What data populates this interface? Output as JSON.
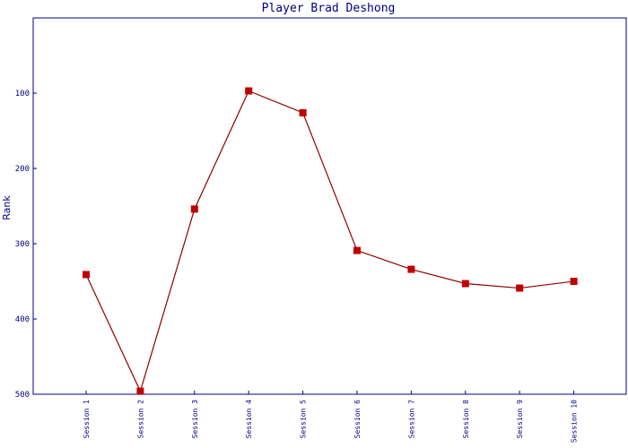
{
  "chart_data": {
    "type": "line",
    "title": "Player Brad Deshong",
    "xlabel": "",
    "ylabel": "Rank",
    "ylim": [
      0,
      500
    ],
    "y_inverted": true,
    "yticks": [
      100,
      200,
      300,
      400,
      500
    ],
    "categories": [
      "Session 1",
      "Session 2",
      "Session 3",
      "Session 4",
      "Session 5",
      "Session 6",
      "Session 7",
      "Session 8",
      "Session 9",
      "Session 10"
    ],
    "series": [
      {
        "values": [
          341,
          496,
          254,
          97,
          126,
          309,
          334,
          353,
          359,
          350
        ]
      }
    ],
    "grid": false,
    "legend": "none"
  },
  "colors": {
    "axis": "#000080",
    "line": "#8b0000",
    "marker": "#c00000",
    "background": "#ffffff"
  }
}
